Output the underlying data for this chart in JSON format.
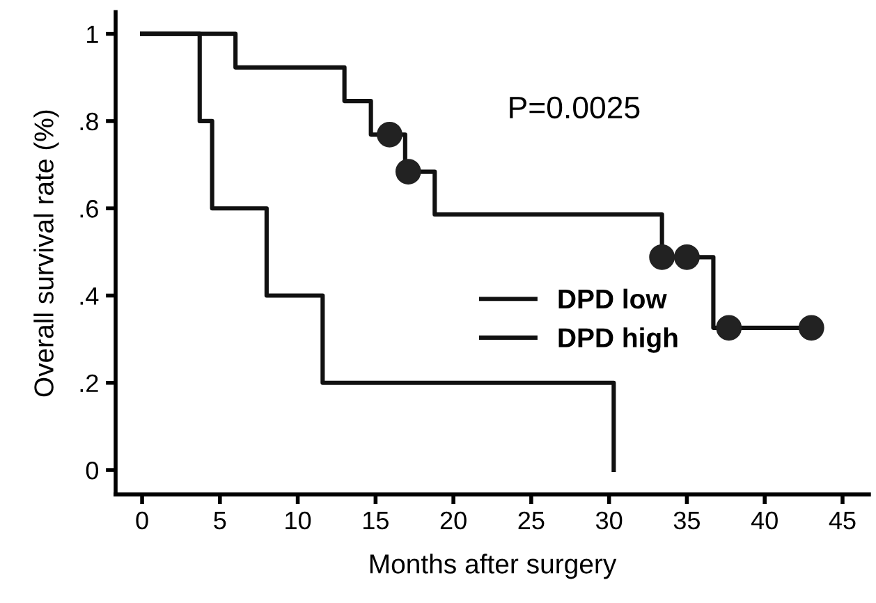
{
  "chart_data": {
    "type": "step",
    "xlabel": "Months after surgery",
    "ylabel": "Overall survival rate (%)",
    "series": [
      {
        "name": "DPD low",
        "color": "#111111",
        "x": [
          0,
          6.0,
          13.0,
          14.7,
          16.9,
          18.8,
          33.4,
          36.7,
          43.0
        ],
        "values": [
          1,
          0.923,
          0.846,
          0.769,
          0.684,
          0.586,
          0.488,
          0.326,
          0.326
        ]
      },
      {
        "name": "DPD high",
        "color": "#111111",
        "x": [
          0,
          3.7,
          4.5,
          8.0,
          11.6,
          30.3
        ],
        "values": [
          1,
          0.8,
          0.6,
          0.4,
          0.2,
          0
        ]
      },
      {
        "type": "scatter",
        "color": "#222222",
        "marker": "circle",
        "x": [
          15.9,
          17.1,
          33.4,
          35.0,
          37.7,
          43.0
        ],
        "values": [
          0.769,
          0.684,
          0.488,
          0.488,
          0.326,
          0.326
        ]
      }
    ],
    "xlim": [
      -1.7,
      46.7
    ],
    "ylim": [
      -0.056,
      1.05
    ],
    "xticks": [
      0,
      5,
      10,
      15,
      20,
      25,
      30,
      35,
      40,
      45
    ],
    "yticks": [
      0,
      {
        "value": 0.2,
        "label": ".2"
      },
      {
        "value": 0.4,
        "label": ".4"
      },
      {
        "value": 0.6,
        "label": ".6"
      },
      {
        "value": 0.8,
        "label": ".8"
      },
      1
    ],
    "annotations": [
      "P=0.0025"
    ],
    "legend": "center right",
    "grid": false,
    "marker": "none",
    "line_style": "solid"
  }
}
